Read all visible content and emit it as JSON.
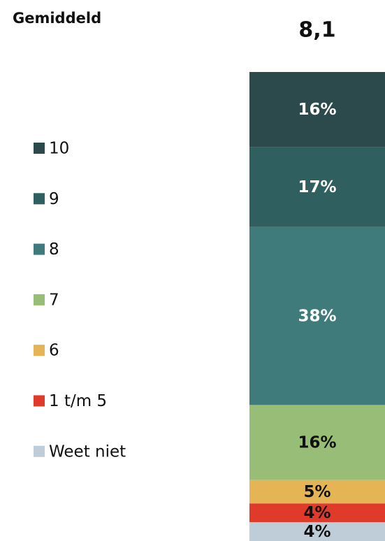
{
  "chart_data": {
    "type": "bar",
    "stacked": true,
    "title": "Gemiddeld",
    "average": "8,1",
    "series": [
      {
        "name": "10",
        "color": "#2c4a4b",
        "label_color": "#ffffff",
        "values": [
          16
        ],
        "value_labels": [
          "16%"
        ]
      },
      {
        "name": "9",
        "color": "#2f5f5e",
        "label_color": "#ffffff",
        "values": [
          17
        ],
        "value_labels": [
          "17%"
        ]
      },
      {
        "name": "8",
        "color": "#3f7b7a",
        "label_color": "#ffffff",
        "values": [
          38
        ],
        "value_labels": [
          "38%"
        ]
      },
      {
        "name": "7",
        "color": "#97bd76",
        "label_color": "#111111",
        "values": [
          16
        ],
        "value_labels": [
          "16%"
        ]
      },
      {
        "name": "6",
        "color": "#e5b455",
        "label_color": "#111111",
        "values": [
          5
        ],
        "value_labels": [
          "5%"
        ]
      },
      {
        "name": "1 t/m 5",
        "color": "#e03b2a",
        "label_color": "#111111",
        "values": [
          4
        ],
        "value_labels": [
          "4%"
        ]
      },
      {
        "name": "Weet niet",
        "color": "#bfcdd9",
        "label_color": "#111111",
        "values": [
          4
        ],
        "value_labels": [
          "4%"
        ]
      }
    ]
  }
}
